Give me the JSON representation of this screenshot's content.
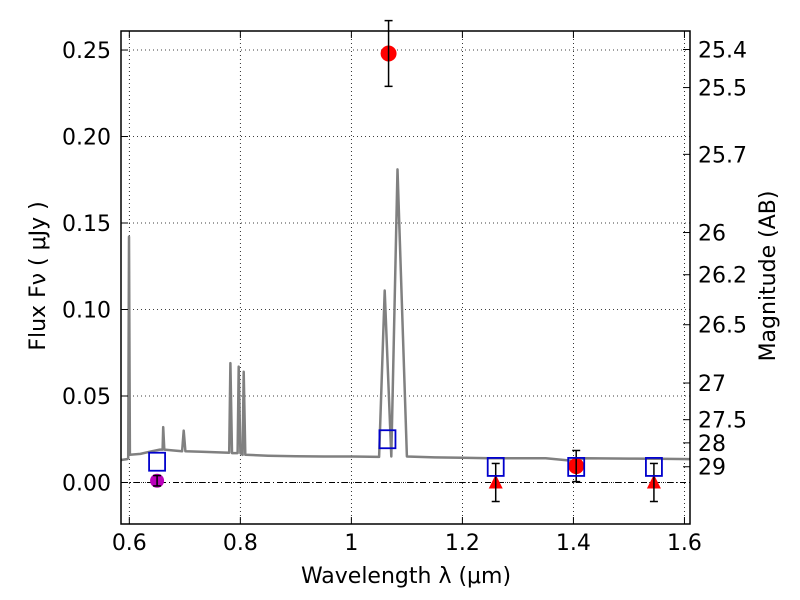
{
  "chart_data": {
    "type": "scatter",
    "xlabel": "Wavelength  λ (μm)",
    "ylabel": "Flux  Fν  ( μJy )",
    "y2label": "Magnitude (AB)",
    "xlim": [
      0.585,
      1.61
    ],
    "ylim": [
      -0.024,
      0.261
    ],
    "grid": true,
    "x_ticks": [
      0.6,
      0.8,
      1.0,
      1.2,
      1.4,
      1.6
    ],
    "x_tick_labels": [
      "0.6",
      "0.8",
      "1",
      "1.2",
      "1.4",
      "1.6"
    ],
    "y_ticks": [
      0.0,
      0.05,
      0.1,
      0.15,
      0.2,
      0.25
    ],
    "y_tick_labels": [
      "0.00",
      "0.05",
      "0.10",
      "0.15",
      "0.20",
      "0.25"
    ],
    "mag_ticks": [
      {
        "flux": 0.2503,
        "label": "25.4"
      },
      {
        "flux": 0.2283,
        "label": "25.5"
      },
      {
        "flux": 0.1897,
        "label": "25.7"
      },
      {
        "flux": 0.1445,
        "label": "26"
      },
      {
        "flux": 0.1201,
        "label": "26.2"
      },
      {
        "flux": 0.0912,
        "label": "26.5"
      },
      {
        "flux": 0.0575,
        "label": "27"
      },
      {
        "flux": 0.0363,
        "label": "27.5"
      },
      {
        "flux": 0.0229,
        "label": "28"
      },
      {
        "flux": 0.0091,
        "label": "29"
      }
    ],
    "model_spectrum": {
      "color": "#808080",
      "points": [
        [
          0.585,
          0.013
        ],
        [
          0.596,
          0.0135
        ],
        [
          0.598,
          0.014
        ],
        [
          0.5995,
          0.142
        ],
        [
          0.601,
          0.016
        ],
        [
          0.62,
          0.0165
        ],
        [
          0.64,
          0.018
        ],
        [
          0.655,
          0.019
        ],
        [
          0.66,
          0.019
        ],
        [
          0.661,
          0.032
        ],
        [
          0.663,
          0.019
        ],
        [
          0.68,
          0.0185
        ],
        [
          0.695,
          0.018
        ],
        [
          0.698,
          0.03
        ],
        [
          0.701,
          0.018
        ],
        [
          0.73,
          0.0178
        ],
        [
          0.78,
          0.0172
        ],
        [
          0.782,
          0.069
        ],
        [
          0.785,
          0.017
        ],
        [
          0.795,
          0.017
        ],
        [
          0.797,
          0.067
        ],
        [
          0.8,
          0.017
        ],
        [
          0.804,
          0.016
        ],
        [
          0.806,
          0.064
        ],
        [
          0.809,
          0.016
        ],
        [
          0.85,
          0.0155
        ],
        [
          0.9,
          0.0152
        ],
        [
          0.95,
          0.015
        ],
        [
          1.0,
          0.015
        ],
        [
          1.05,
          0.0148
        ],
        [
          1.06,
          0.111
        ],
        [
          1.072,
          0.015
        ],
        [
          1.083,
          0.181
        ],
        [
          1.1,
          0.015
        ],
        [
          1.15,
          0.0145
        ],
        [
          1.2,
          0.0143
        ],
        [
          1.25,
          0.014
        ],
        [
          1.3,
          0.014
        ],
        [
          1.35,
          0.014
        ],
        [
          1.4,
          0.0125
        ],
        [
          1.42,
          0.014
        ],
        [
          1.5,
          0.0138
        ],
        [
          1.55,
          0.0137
        ],
        [
          1.61,
          0.0135
        ]
      ]
    },
    "model_photometry": {
      "color": "#0000cc",
      "marker": "open-square",
      "points": [
        [
          0.65,
          0.012
        ],
        [
          1.065,
          0.025
        ],
        [
          1.26,
          0.009
        ],
        [
          1.405,
          0.009
        ],
        [
          1.545,
          0.009
        ]
      ]
    },
    "detections": {
      "color": "#ff0000",
      "marker": "circle",
      "points": [
        {
          "x": 1.067,
          "y": 0.248,
          "err": 0.019
        },
        {
          "x": 1.405,
          "y": 0.0095,
          "err": 0.009
        }
      ]
    },
    "upper_limits": {
      "color": "#ff0000",
      "marker": "triangle",
      "points": [
        {
          "x": 1.26,
          "y": 0.0,
          "err": 0.011
        },
        {
          "x": 1.545,
          "y": 0.0,
          "err": 0.011
        }
      ]
    },
    "other_point": {
      "color": "#bb00bb",
      "marker": "circle",
      "point": {
        "x": 0.65,
        "y": 0.001,
        "err": 0.003
      }
    }
  }
}
